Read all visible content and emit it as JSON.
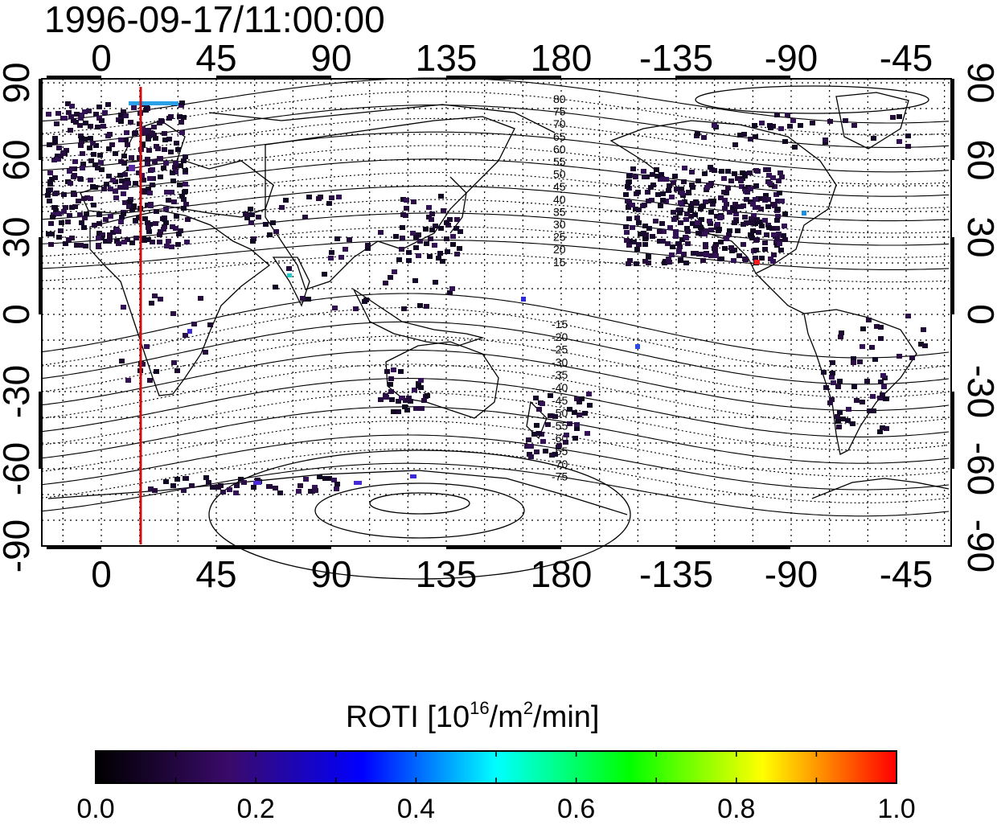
{
  "title": "1996-09-17/11:00:00",
  "map": {
    "type": "global ROTI map",
    "x_ticks_top": [
      "0",
      "45",
      "90",
      "135",
      "180",
      "-135",
      "-90",
      "-45"
    ],
    "x_ticks_bottom": [
      "0",
      "45",
      "90",
      "135",
      "180",
      "-135",
      "-90",
      "-45"
    ],
    "y_ticks_left": [
      "90",
      "60",
      "30",
      "0",
      "-30",
      "-60",
      "-90"
    ],
    "y_ticks_right": [
      "90",
      "60",
      "30",
      "0",
      "-30",
      "-60",
      "-90"
    ],
    "contour_labels_north": [
      "80",
      "75",
      "70",
      "65",
      "60",
      "55",
      "50",
      "45",
      "40",
      "35",
      "30",
      "25",
      "20",
      "15"
    ],
    "contour_labels_south": [
      "-15",
      "-20",
      "-25",
      "-30",
      "-35",
      "-40",
      "-45",
      "-50",
      "-55",
      "-60",
      "-65",
      "-70",
      "-75"
    ],
    "terminator_color": "#d01010",
    "grid": true
  },
  "colorbar": {
    "title_main": "ROTI  [10",
    "title_sup1": "16",
    "title_mid": "/m",
    "title_sup2": "2",
    "title_end": "/min]",
    "tick_labels": [
      "0.0",
      "0.2",
      "0.4",
      "0.6",
      "0.8",
      "1.0"
    ],
    "range": [
      0.0,
      1.0
    ],
    "colormap": [
      "#000000",
      "#3a0a6a",
      "#0000ff",
      "#00ffff",
      "#00ff00",
      "#ffff00",
      "#ff0000"
    ]
  }
}
